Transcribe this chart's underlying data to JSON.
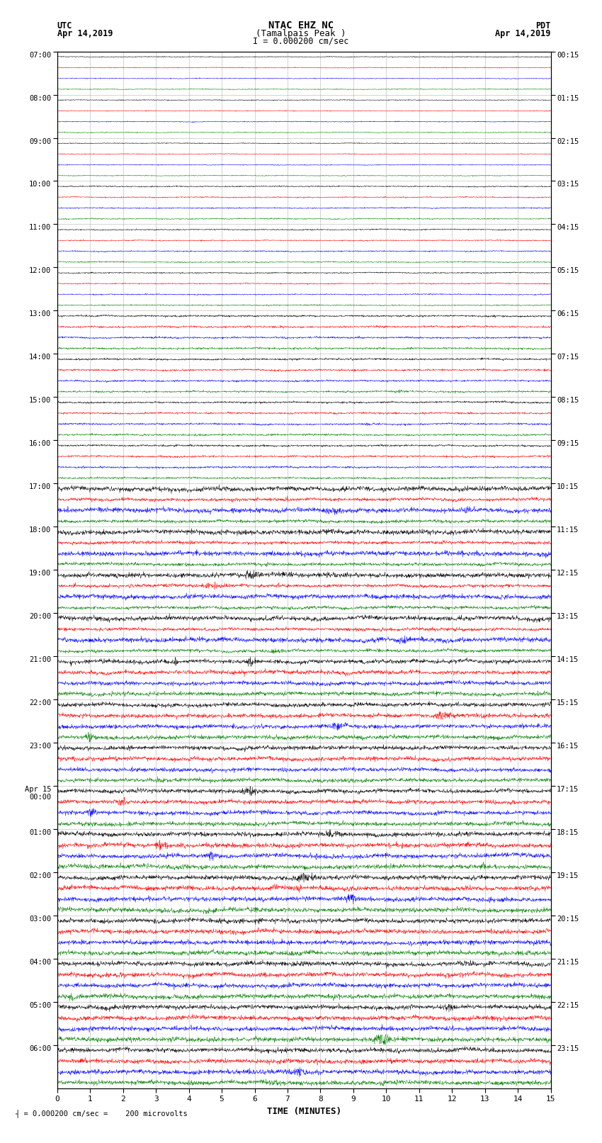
{
  "title_line1": "NTAC EHZ NC",
  "title_line2": "(Tamalpais Peak )",
  "scale_text": "I = 0.000200 cm/sec",
  "left_label": "UTC",
  "left_date": "Apr 14,2019",
  "right_label": "PDT",
  "right_date": "Apr 14,2019",
  "xlabel": "TIME (MINUTES)",
  "footer_text": "= 0.000200 cm/sec =    200 microvolts",
  "utc_hour_labels": [
    "07:00",
    "08:00",
    "09:00",
    "10:00",
    "11:00",
    "12:00",
    "13:00",
    "14:00",
    "15:00",
    "16:00",
    "17:00",
    "18:00",
    "19:00",
    "20:00",
    "21:00",
    "22:00",
    "23:00",
    "Apr 15\n00:00",
    "01:00",
    "02:00",
    "03:00",
    "04:00",
    "05:00",
    "06:00"
  ],
  "pdt_hour_labels": [
    "00:15",
    "01:15",
    "02:15",
    "03:15",
    "04:15",
    "05:15",
    "06:15",
    "07:15",
    "08:15",
    "09:15",
    "10:15",
    "11:15",
    "12:15",
    "13:15",
    "14:15",
    "15:15",
    "16:15",
    "17:15",
    "18:15",
    "19:15",
    "20:15",
    "21:15",
    "22:15",
    "23:15"
  ],
  "n_hours": 24,
  "traces_per_hour": 4,
  "row_colors": [
    "black",
    "red",
    "blue",
    "green"
  ],
  "bg_color": "white",
  "xmin": 0,
  "xmax": 15,
  "xticks": [
    0,
    1,
    2,
    3,
    4,
    5,
    6,
    7,
    8,
    9,
    10,
    11,
    12,
    13,
    14,
    15
  ],
  "grid_color": "#888888",
  "grid_alpha": 0.5,
  "noise_seed": 12345,
  "trace_lw": 0.35
}
